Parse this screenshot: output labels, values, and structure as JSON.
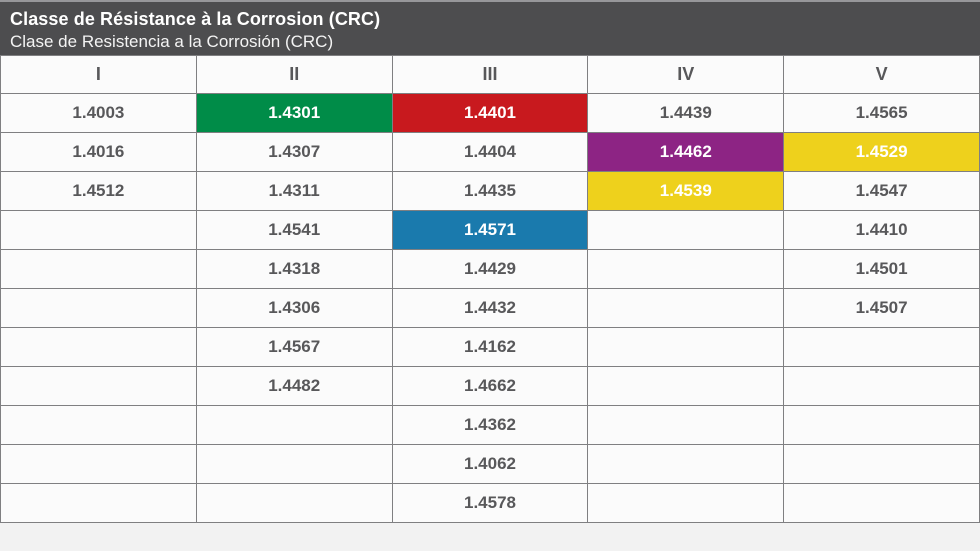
{
  "header": {
    "title": "Classe de Résistance à la Corrosion (CRC)",
    "subtitle": "Clase de Resistencia a la Corrosión (CRC)"
  },
  "table": {
    "columns": [
      "I",
      "II",
      "III",
      "IV",
      "V"
    ],
    "rows": [
      [
        {
          "v": "1.4003"
        },
        {
          "v": "1.4301",
          "hl": "green"
        },
        {
          "v": "1.4401",
          "hl": "red"
        },
        {
          "v": "1.4439"
        },
        {
          "v": "1.4565"
        }
      ],
      [
        {
          "v": "1.4016"
        },
        {
          "v": "1.4307"
        },
        {
          "v": "1.4404"
        },
        {
          "v": "1.4462",
          "hl": "purple"
        },
        {
          "v": "1.4529",
          "hl": "yellow"
        }
      ],
      [
        {
          "v": "1.4512"
        },
        {
          "v": "1.4311"
        },
        {
          "v": "1.4435"
        },
        {
          "v": "1.4539",
          "hl": "yellow"
        },
        {
          "v": "1.4547"
        }
      ],
      [
        null,
        {
          "v": "1.4541"
        },
        {
          "v": "1.4571",
          "hl": "blue"
        },
        null,
        {
          "v": "1.4410"
        }
      ],
      [
        null,
        {
          "v": "1.4318"
        },
        {
          "v": "1.4429"
        },
        null,
        {
          "v": "1.4501"
        }
      ],
      [
        null,
        {
          "v": "1.4306"
        },
        {
          "v": "1.4432"
        },
        null,
        {
          "v": "1.4507"
        }
      ],
      [
        null,
        {
          "v": "1.4567"
        },
        {
          "v": "1.4162"
        },
        null,
        null
      ],
      [
        null,
        {
          "v": "1.4482"
        },
        {
          "v": "1.4662"
        },
        null,
        null
      ],
      [
        null,
        null,
        {
          "v": "1.4362"
        },
        null,
        null
      ],
      [
        null,
        null,
        {
          "v": "1.4062"
        },
        null,
        null
      ],
      [
        null,
        null,
        {
          "v": "1.4578"
        },
        null,
        null
      ]
    ]
  },
  "colors": {
    "green": "#008c48",
    "red": "#c8191e",
    "purple": "#8d2484",
    "yellow": "#eed11c",
    "blue": "#1a7aad",
    "header_bg": "#4d4d4f",
    "cell_text": "#58585a",
    "grid_line": "#7f7f81"
  }
}
